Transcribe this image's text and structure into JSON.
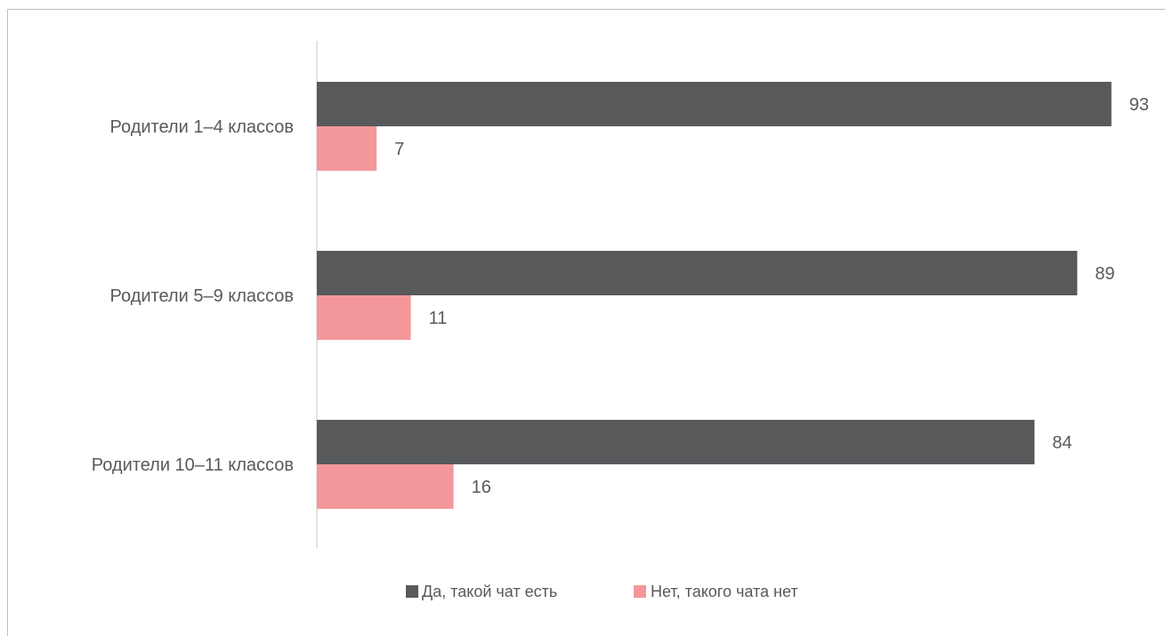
{
  "chart_data": {
    "type": "bar",
    "orientation": "horizontal",
    "categories": [
      "Родители 1–4 классов",
      "Родители 5–9 классов",
      "Родители 10–11 классов"
    ],
    "series": [
      {
        "name": "Да, такой чат есть",
        "values": [
          93,
          89,
          84
        ],
        "color": "#58595b"
      },
      {
        "name": "Нет, такого чата нет",
        "values": [
          7,
          11,
          16
        ],
        "color": "#f4979a"
      }
    ],
    "title": "",
    "xlabel": "",
    "ylabel": "",
    "xlim": [
      0,
      100
    ],
    "grid": false,
    "data_labels": true,
    "legend_position": "bottom"
  }
}
